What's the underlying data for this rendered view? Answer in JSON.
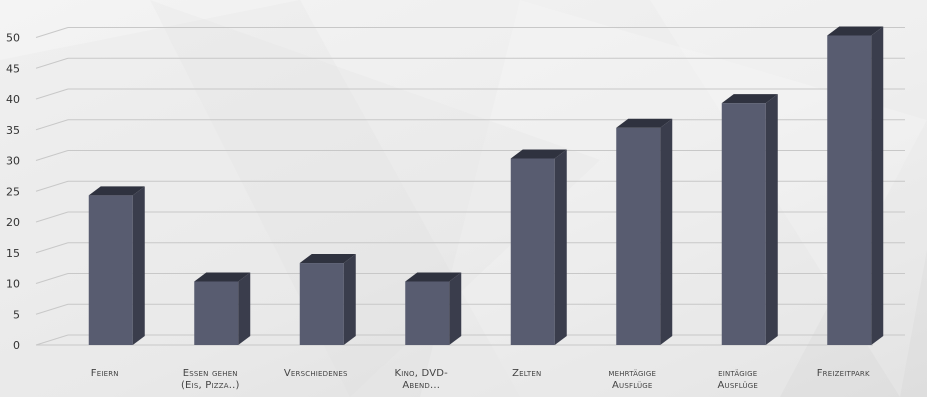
{
  "chart_data": {
    "type": "bar",
    "categories": [
      [
        "Feiern"
      ],
      [
        "Essen gehen",
        "(Eis, Pizza..)"
      ],
      [
        "Verschiedenes"
      ],
      [
        "Kino, DVD-",
        "Abend..."
      ],
      [
        "Zelten"
      ],
      [
        "mehrtägige",
        "Ausflüge"
      ],
      [
        "eintägige",
        "Ausflüge"
      ],
      [
        "Freizeitpark"
      ]
    ],
    "values": [
      24,
      10,
      13,
      10,
      30,
      35,
      39,
      50
    ],
    "y_ticks": [
      "0",
      "5",
      "10",
      "15",
      "20",
      "25",
      "30",
      "35",
      "40",
      "45",
      "50"
    ],
    "ylim": [
      0,
      53
    ],
    "grid": true,
    "colors": {
      "front": "#585c70",
      "side": "#3a3d4c",
      "top": "#2f323f",
      "grid": "#c8c8c8"
    }
  }
}
